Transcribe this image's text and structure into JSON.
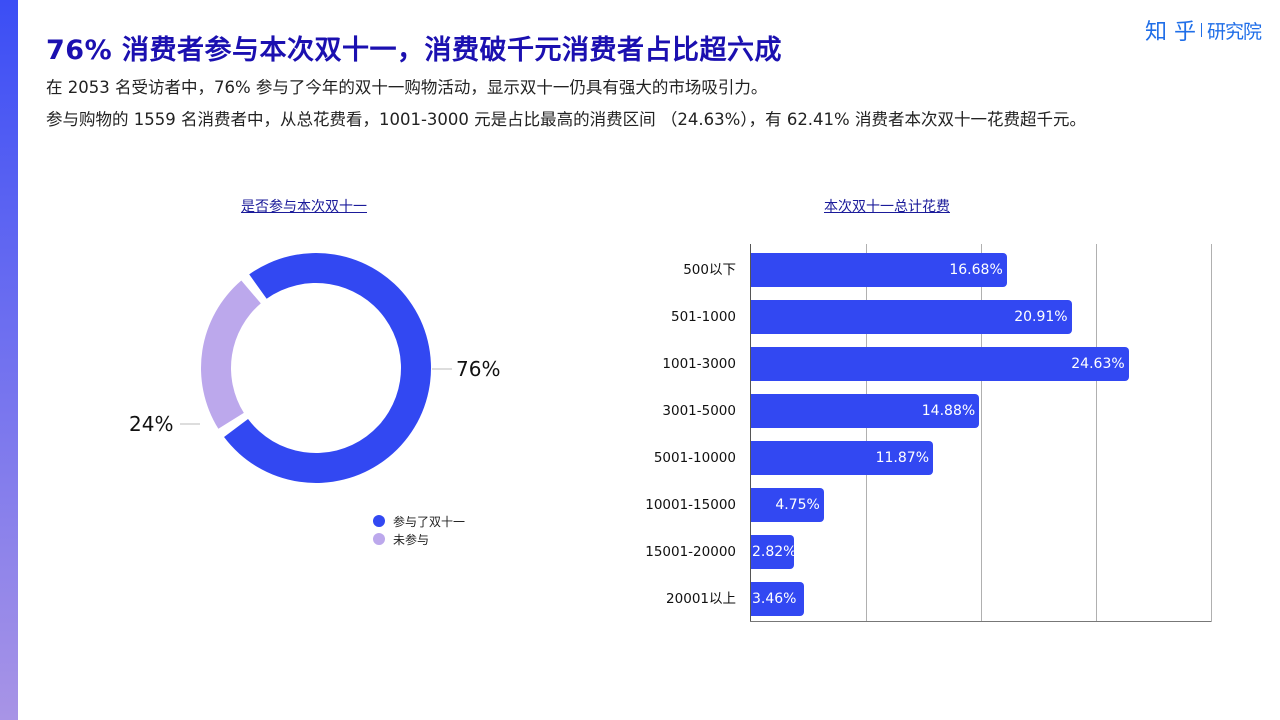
{
  "header": {
    "title": "76% 消费者参与本次双十一，消费破千元消费者占比超六成",
    "subtitle_1": "在 2053 名受访者中，76% 参与了今年的双十一购物活动，显示双十一仍具有强大的市场吸引力。",
    "subtitle_2": "参与购物的 1559 名消费者中，从总花费看，1001-3000 元是占比最高的消费区间 （24.63%），有 62.41% 消费者本次双十一花费超千元。",
    "logo_main": "知 乎",
    "logo_sub": "研究院"
  },
  "colors": {
    "accent": "#3248f2",
    "secondary": "#bca8ec",
    "title": "#1b10b0",
    "logo": "#1f6ee8"
  },
  "chart_data": [
    {
      "type": "pie",
      "subtype": "donut",
      "title": "是否参与本次双十一",
      "categories": [
        "参与了双十一",
        "未参与"
      ],
      "values": [
        76,
        24
      ],
      "labels": [
        "76%",
        "24%"
      ],
      "colors": [
        "#3248f2",
        "#bca8ec"
      ],
      "legend_position": "bottom-right"
    },
    {
      "type": "bar",
      "orientation": "horizontal",
      "title": "本次双十一总计花费",
      "categories": [
        "500以下",
        "501-1000",
        "1001-3000",
        "3001-5000",
        "5001-10000",
        "10001-15000",
        "15001-20000",
        "20001以上"
      ],
      "values": [
        16.68,
        20.91,
        24.63,
        14.88,
        11.87,
        4.75,
        2.82,
        3.46
      ],
      "labels": [
        "16.68%",
        "20.91%",
        "24.63%",
        "14.88%",
        "11.87%",
        "4.75%",
        "2.82%",
        "3.46%"
      ],
      "xlabel": "",
      "ylabel": "",
      "xlim": [
        0,
        30
      ],
      "grid": true,
      "color": "#3248f2"
    }
  ]
}
